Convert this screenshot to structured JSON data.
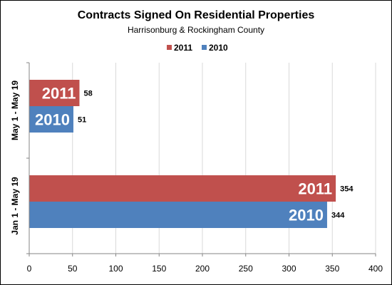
{
  "chart_data": {
    "type": "bar",
    "orientation": "horizontal",
    "title": "Contracts Signed On Residential Properties",
    "subtitle": "Harrisonburg & Rockingham County",
    "categories": [
      "May 1 - May 19",
      "Jan 1 - May 19"
    ],
    "series": [
      {
        "name": "2011",
        "values": [
          58,
          354
        ],
        "color": "#c0504d"
      },
      {
        "name": "2010",
        "values": [
          51,
          344
        ],
        "color": "#4f81bd"
      }
    ],
    "xlim": [
      0,
      400
    ],
    "xticks": [
      0,
      50,
      100,
      150,
      200,
      250,
      300,
      350,
      400
    ],
    "grid": true,
    "legend": "top-center",
    "bar_labels_inside": true,
    "data_labels": true
  }
}
